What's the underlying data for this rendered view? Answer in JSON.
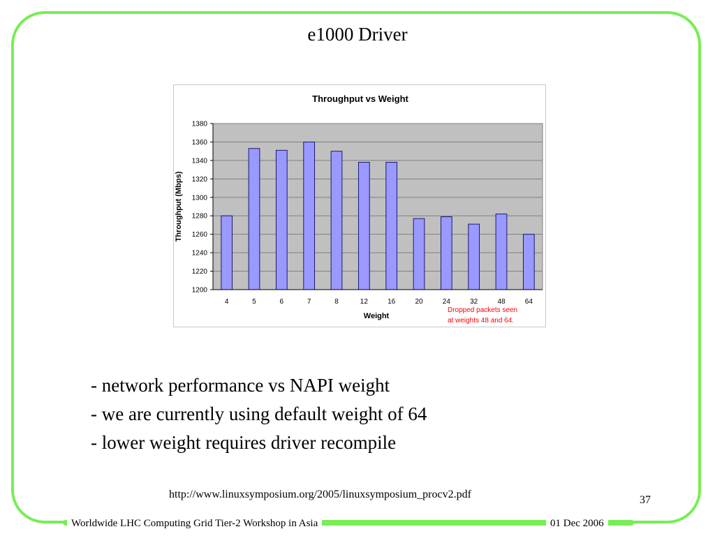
{
  "slide": {
    "title": "e1000 Driver",
    "bullets": [
      "- network performance vs NAPI weight",
      "- we are currently using default weight of 64",
      "- lower weight requires driver recompile"
    ],
    "source_url": "http://www.linuxsymposium.org/2005/linuxsymposium_procv2.pdf",
    "page_number": "37",
    "footer_left": "Worldwide LHC Computing Grid Tier-2 Workshop in Asia",
    "footer_right": "01 Dec 2006",
    "border_color": "#77ee55"
  },
  "chart_data": {
    "type": "bar",
    "title": "Throughput vs Weight",
    "xlabel": "Weight",
    "ylabel": "Throughput (Mbps)",
    "categories": [
      "4",
      "5",
      "6",
      "7",
      "8",
      "12",
      "16",
      "20",
      "24",
      "32",
      "48",
      "64"
    ],
    "values": [
      1280,
      1353,
      1351,
      1360,
      1350,
      1338,
      1338,
      1277,
      1279,
      1271,
      1282,
      1260
    ],
    "ylim": [
      1200,
      1380
    ],
    "yticks": [
      1200,
      1220,
      1240,
      1260,
      1280,
      1300,
      1320,
      1340,
      1360,
      1380
    ],
    "grid": true,
    "bar_color": "#9999ff",
    "bar_edge_color": "#1a1a6e",
    "plot_background": "#c0c0c0",
    "annotation": [
      "Dropped packets seen",
      "at weights 48 and 64."
    ],
    "annotation_color": "#ff0000"
  }
}
